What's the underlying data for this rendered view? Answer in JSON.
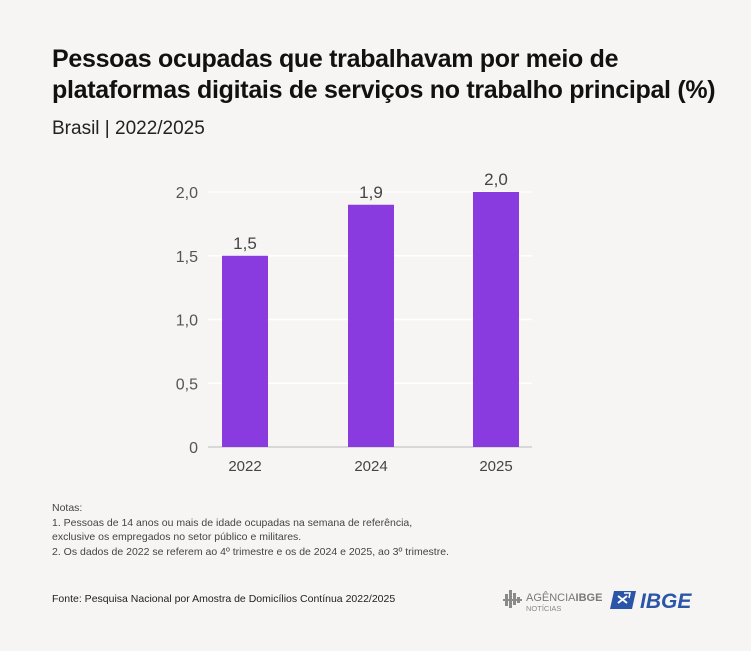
{
  "header": {
    "title": "Pessoas ocupadas que trabalhavam por meio de plataformas digitais de serviços no trabalho principal (%)",
    "subtitle": "Brasil | 2022/2025"
  },
  "chart_data": {
    "type": "bar",
    "categories": [
      "2022",
      "2024",
      "2025"
    ],
    "values": [
      1.5,
      1.9,
      2.0
    ],
    "value_labels": [
      "1,5",
      "1,9",
      "2,0"
    ],
    "yticks": [
      0,
      0.5,
      1.0,
      1.5,
      2.0
    ],
    "ytick_labels": [
      "0",
      "0,5",
      "1,0",
      "1,5",
      "2,0"
    ],
    "ylim": [
      0,
      2.0
    ],
    "grid": true,
    "bar_color": "#8a3be0",
    "grid_color": "#ffffff"
  },
  "notes": {
    "heading": "Notas:",
    "lines": [
      "1. Pessoas de 14 anos ou mais de idade ocupadas na semana de referência,",
      "exclusive os empregados no setor público e militares.",
      "2. Os dados de 2022 se referem ao 4º trimestre e os de 2024 e 2025, ao 3º trimestre."
    ]
  },
  "source": "Fonte: Pesquisa Nacional por Amostra de Domicílios Contínua 2022/2025",
  "logos": {
    "agencia_main": "AGÊNCIA",
    "agencia_bold": "IBGE",
    "agencia_sub": "NOTÍCIAS",
    "ibge": "IBGE",
    "brand_color": "#2b56a8"
  }
}
